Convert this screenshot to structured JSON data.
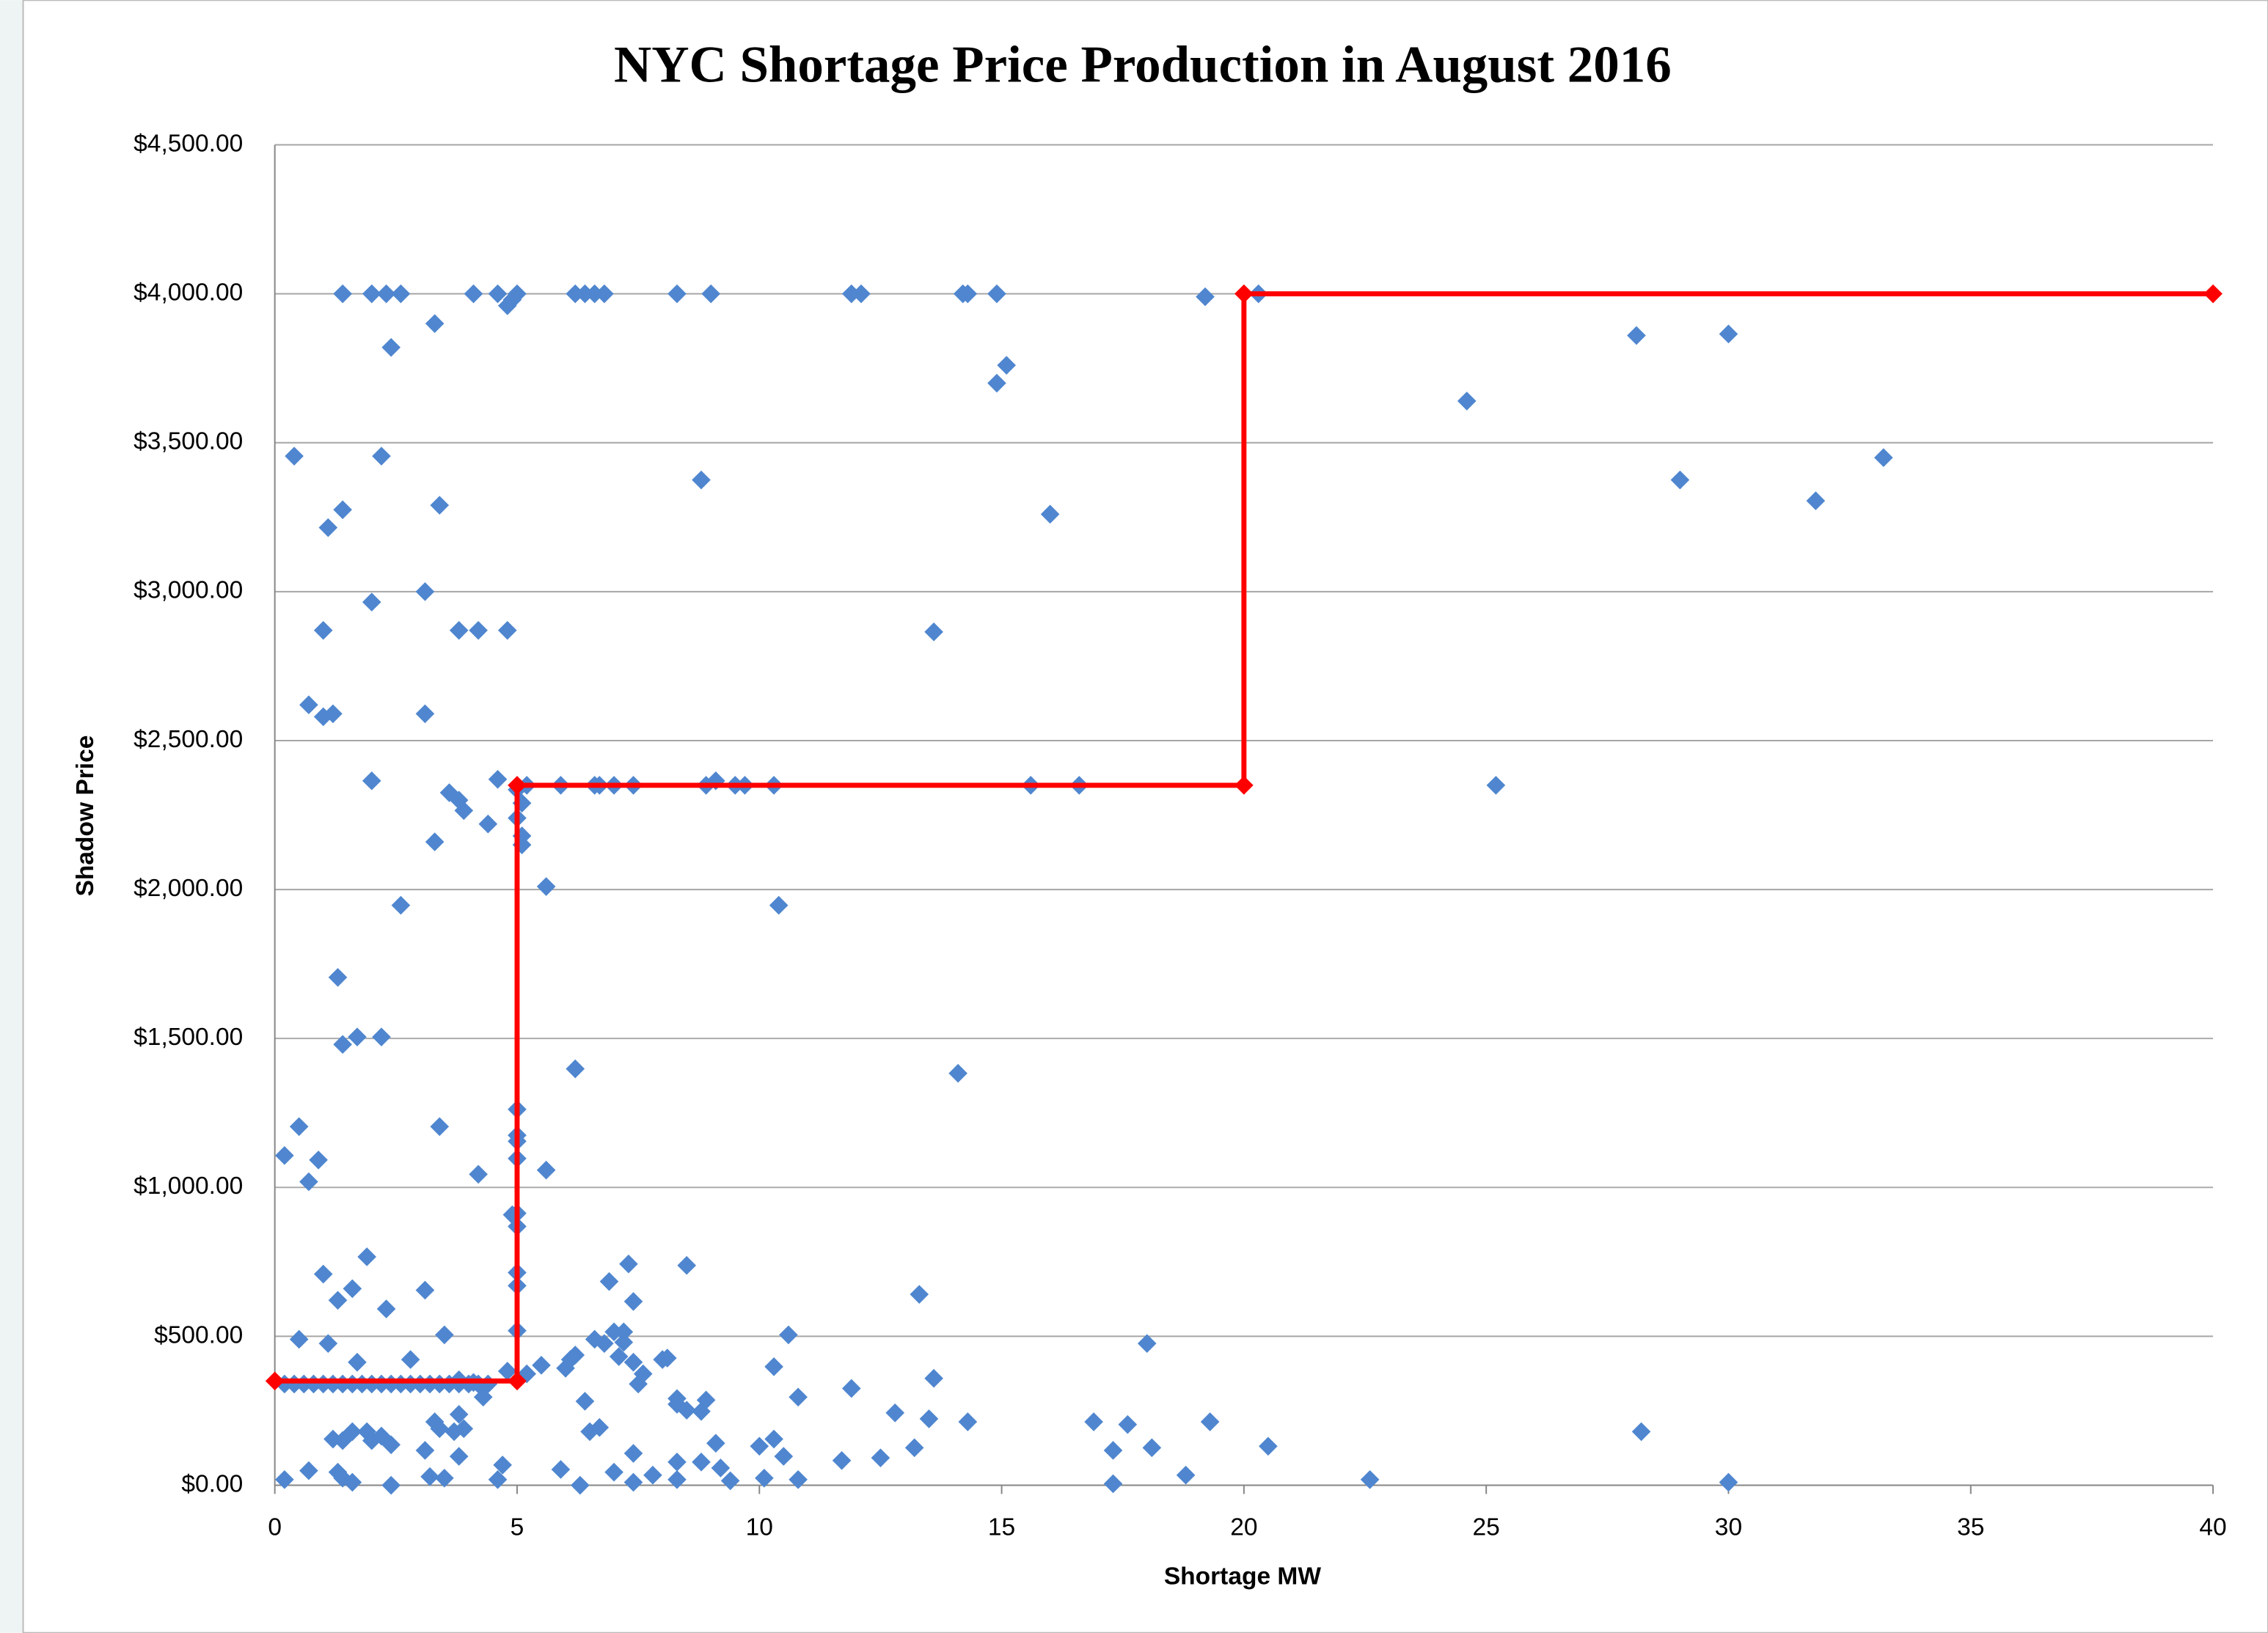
{
  "chart_data": {
    "type": "scatter",
    "title": "NYC Shortage Price Production in August 2016",
    "x_label": "Shortage MW",
    "y_label": "Shadow Price",
    "xlim": [
      0,
      40
    ],
    "xticks": [
      0,
      5,
      10,
      15,
      20,
      25,
      30,
      35,
      40
    ],
    "ylim": [
      0,
      4500
    ],
    "yticks": [
      {
        "value": 0,
        "label": "$0.00"
      },
      {
        "value": 500,
        "label": "$500.00"
      },
      {
        "value": 1000,
        "label": "$1,000.00"
      },
      {
        "value": 1500,
        "label": "$1,500.00"
      },
      {
        "value": 2000,
        "label": "$2,000.00"
      },
      {
        "value": 2500,
        "label": "$2,500.00"
      },
      {
        "value": 3000,
        "label": "$3,000.00"
      },
      {
        "value": 3500,
        "label": "$3,500.00"
      },
      {
        "value": 4000,
        "label": "$4,000.00"
      },
      {
        "value": 4500,
        "label": "$4,500.00"
      }
    ],
    "grid": true,
    "series": [
      {
        "color": "#4f86cf",
        "mode": "markers",
        "x": [
          1.4,
          2.0,
          2.3,
          2.6,
          4.1,
          4.6,
          4.8,
          4.9,
          5.0,
          6.2,
          6.4,
          6.6,
          6.8,
          8.3,
          9.0,
          11.9,
          12.1,
          14.2,
          14.3,
          14.9,
          19.2,
          20.3,
          2.4,
          3.3,
          14.9,
          15.1,
          24.6,
          28.1,
          30.0,
          29.0,
          33.2,
          31.8,
          0.4,
          2.2,
          8.8,
          16.0,
          1.4,
          1.1,
          3.4,
          1.0,
          3.1,
          2.0,
          3.8,
          4.2,
          4.8,
          13.6,
          0.7,
          1.0,
          1.2,
          3.1,
          2.0,
          4.6,
          3.6,
          3.8,
          3.9,
          4.4,
          3.3,
          5.0,
          5.1,
          5.0,
          5.1,
          5.1,
          5.2,
          5.9,
          6.6,
          6.7,
          7.0,
          7.4,
          8.9,
          9.1,
          9.5,
          9.7,
          10.3,
          15.6,
          16.6,
          25.2,
          5.6,
          2.6,
          10.4,
          1.3,
          1.7,
          1.4,
          2.2,
          6.2,
          14.1,
          0.5,
          3.4,
          5.0,
          5.0,
          5.0,
          5.6,
          5.0,
          0.2,
          0.9,
          0.7,
          4.2,
          5.0,
          5.0,
          4.9,
          1.9,
          1.0,
          1.6,
          1.3,
          2.3,
          3.1,
          3.5,
          1.1,
          0.5,
          5.0,
          5.0,
          5.0,
          7.3,
          6.9,
          7.4,
          8.5,
          13.3,
          6.6,
          6.8,
          7.0,
          7.2,
          7.2,
          7.1,
          7.4,
          8.0,
          10.6,
          10.3,
          18.0,
          13.6,
          0.2,
          0.4,
          0.6,
          0.8,
          1.0,
          1.2,
          1.4,
          1.6,
          1.8,
          2.0,
          2.2,
          2.4,
          2.6,
          2.8,
          3.0,
          3.2,
          3.4,
          3.6,
          3.8,
          4.0,
          4.2,
          4.4,
          4.8,
          5.2,
          5.5,
          6.0,
          6.1,
          6.2,
          7.6,
          7.5,
          8.1,
          1.7,
          2.8,
          3.8,
          4.1,
          4.3,
          6.4,
          8.3,
          8.9,
          10.8,
          11.9,
          12.8,
          13.5,
          14.3,
          16.9,
          17.6,
          19.3,
          6.5,
          6.7,
          8.3,
          8.5,
          8.8,
          9.1,
          10.0,
          10.3,
          10.5,
          12.5,
          13.2,
          11.7,
          20.5,
          18.1,
          17.3,
          28.2,
          1.2,
          1.4,
          1.6,
          1.9,
          2.0,
          2.2,
          2.4,
          3.3,
          3.4,
          3.8,
          3.9,
          3.7,
          3.1,
          3.8,
          4.7,
          7.4,
          1.3,
          1.4,
          1.6,
          2.4,
          0.2,
          0.7,
          3.2,
          3.5,
          4.6,
          5.9,
          6.3,
          7.0,
          7.4,
          7.8,
          8.3,
          8.3,
          8.8,
          9.2,
          9.4,
          10.1,
          10.8,
          18.8,
          17.3,
          22.6,
          30.0
        ],
        "values": [
          4000,
          4000,
          4000,
          4000,
          4000,
          4000,
          3960,
          3980,
          4000,
          4000,
          4000,
          4000,
          4000,
          4000,
          4000,
          4000,
          4000,
          4000,
          4000,
          4000,
          3990,
          4000,
          3820,
          3900,
          3700,
          3760,
          3640,
          3860,
          3865,
          3375,
          3450,
          3305,
          3455,
          3455,
          3375,
          3260,
          3275,
          3215,
          3290,
          2870,
          3000,
          2965,
          2870,
          2870,
          2870,
          2865,
          2620,
          2580,
          2590,
          2590,
          2365,
          2370,
          2325,
          2300,
          2265,
          2220,
          2160,
          2335,
          2290,
          2240,
          2180,
          2150,
          2350,
          2350,
          2350,
          2350,
          2350,
          2350,
          2350,
          2365,
          2350,
          2350,
          2350,
          2350,
          2350,
          2350,
          2010,
          1947,
          1947,
          1705,
          1505,
          1480,
          1505,
          1398,
          1383,
          1204,
          1204,
          1262,
          1175,
          1097,
          1058,
          1155,
          1107,
          1092,
          1019,
          1044,
          913,
          869,
          908,
          767,
          709,
          660,
          621,
          592,
          655,
          505,
          476,
          490,
          714,
          670,
          519,
          743,
          684,
          617,
          738,
          641,
          490,
          476,
          515,
          515,
          480,
          432,
          413,
          422,
          505,
          398,
          476,
          359,
          340,
          340,
          340,
          340,
          340,
          340,
          340,
          340,
          340,
          340,
          340,
          340,
          340,
          340,
          340,
          340,
          340,
          340,
          340,
          340,
          340,
          340,
          383,
          374,
          403,
          393,
          422,
          437,
          374,
          340,
          427,
          413,
          422,
          354,
          345,
          296,
          282,
          291,
          286,
          296,
          325,
          243,
          223,
          213,
          213,
          204,
          213,
          180,
          194,
          272,
          252,
          248,
          141,
          131,
          155,
          97,
          92,
          126,
          83,
          131,
          126,
          117,
          180,
          155,
          150,
          180,
          180,
          150,
          165,
          136,
          213,
          190,
          238,
          190,
          180,
          117,
          97,
          68,
          107,
          44,
          24,
          10,
          0,
          19,
          49,
          29,
          24,
          19,
          53,
          0,
          44,
          10,
          34,
          19,
          78,
          78,
          58,
          15,
          24,
          19,
          34,
          5,
          19,
          10
        ]
      },
      {
        "color": "#ff0000",
        "mode": "lines+markers",
        "x": [
          0,
          5,
          5,
          20,
          20,
          40
        ],
        "values": [
          350,
          350,
          2350,
          2350,
          4000,
          4000
        ]
      }
    ]
  }
}
